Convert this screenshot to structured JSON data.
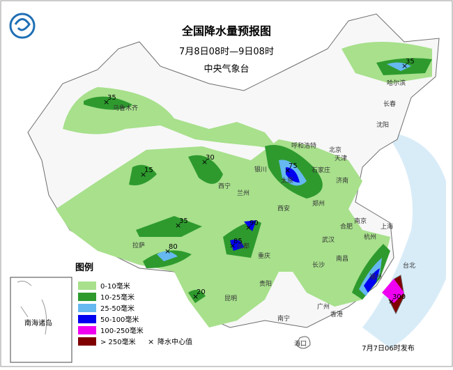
{
  "header": {
    "title": "全国降水量预报图",
    "time_range": "7月8日08时—9日08时",
    "issuer": "中央气象台"
  },
  "legend": {
    "title": "图例",
    "items": [
      {
        "label": "0-10毫米",
        "color": "#a8e08c"
      },
      {
        "label": "10-25毫米",
        "color": "#2e9a2e"
      },
      {
        "label": "25-50毫米",
        "color": "#66b8f0"
      },
      {
        "label": "50-100毫米",
        "color": "#0000f0"
      },
      {
        "label": "100-250毫米",
        "color": "#f000f0"
      },
      {
        "label": "> 250毫米",
        "color": "#800000"
      }
    ],
    "center_marker": "降水中心值"
  },
  "inset_label": "南海诸岛",
  "cities": [
    "乌鲁木齐",
    "拉萨",
    "西宁",
    "兰州",
    "银川",
    "呼和浩特",
    "北京",
    "天津",
    "石家庄",
    "太原",
    "济南",
    "郑州",
    "西安",
    "成都",
    "重庆",
    "贵阳",
    "昆明",
    "南宁",
    "海口",
    "广州",
    "香港",
    "长沙",
    "南昌",
    "福州",
    "台北",
    "杭州",
    "上海",
    "南京",
    "合肥",
    "武汉",
    "沈阳",
    "长春",
    "哈尔滨"
  ],
  "rain_centers": [
    35,
    15,
    30,
    75,
    35,
    35,
    90,
    85,
    80,
    20,
    300
  ],
  "release": "7月7日06时发布"
}
